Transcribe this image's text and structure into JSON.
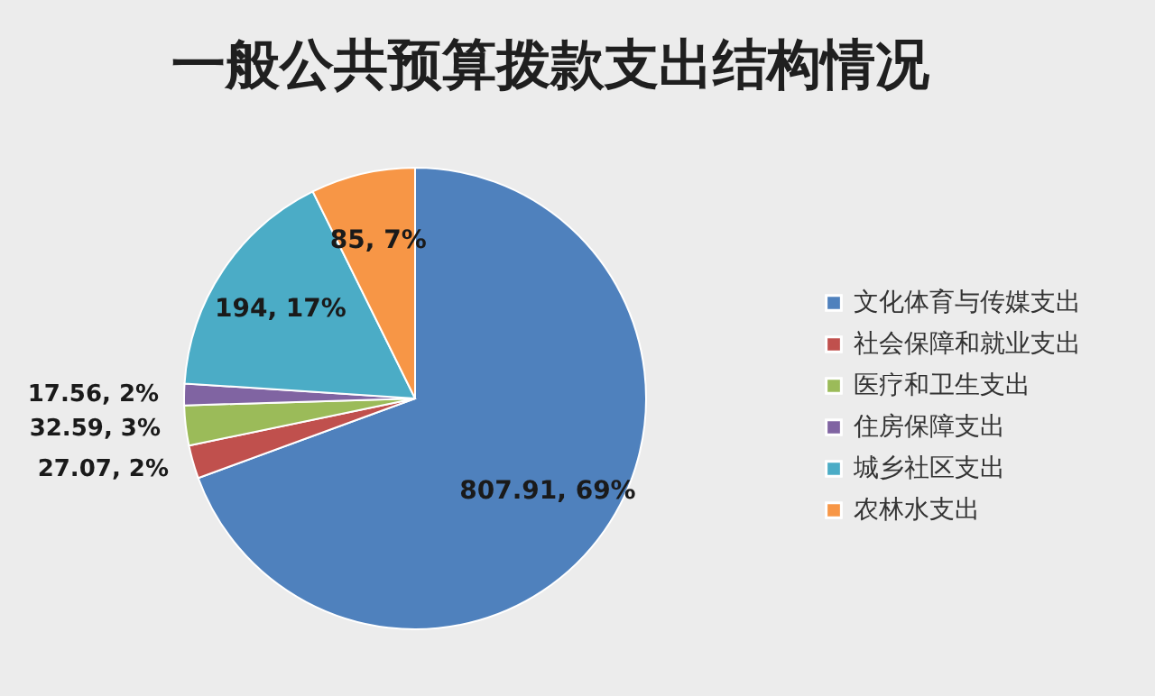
{
  "chart_data": {
    "type": "pie",
    "title": "一般公共预算拨款支出结构情况",
    "categories": [
      "文化体育与传媒支出",
      "社会保障和就业支出",
      "医疗和卫生支出",
      "住房保障支出",
      "城乡社区支出",
      "农林水支出"
    ],
    "values": [
      807.91,
      27.07,
      32.59,
      17.56,
      194,
      85
    ],
    "colors": [
      "#4f81bd",
      "#c0504d",
      "#9bbb59",
      "#8064a2",
      "#4bacc6",
      "#f79646"
    ],
    "value_labels": [
      "807.91, 69%",
      "27.07, 2%",
      "32.59, 3%",
      "17.56, 2%",
      "194, 17%",
      "85, 7%"
    ],
    "legend": "right"
  }
}
